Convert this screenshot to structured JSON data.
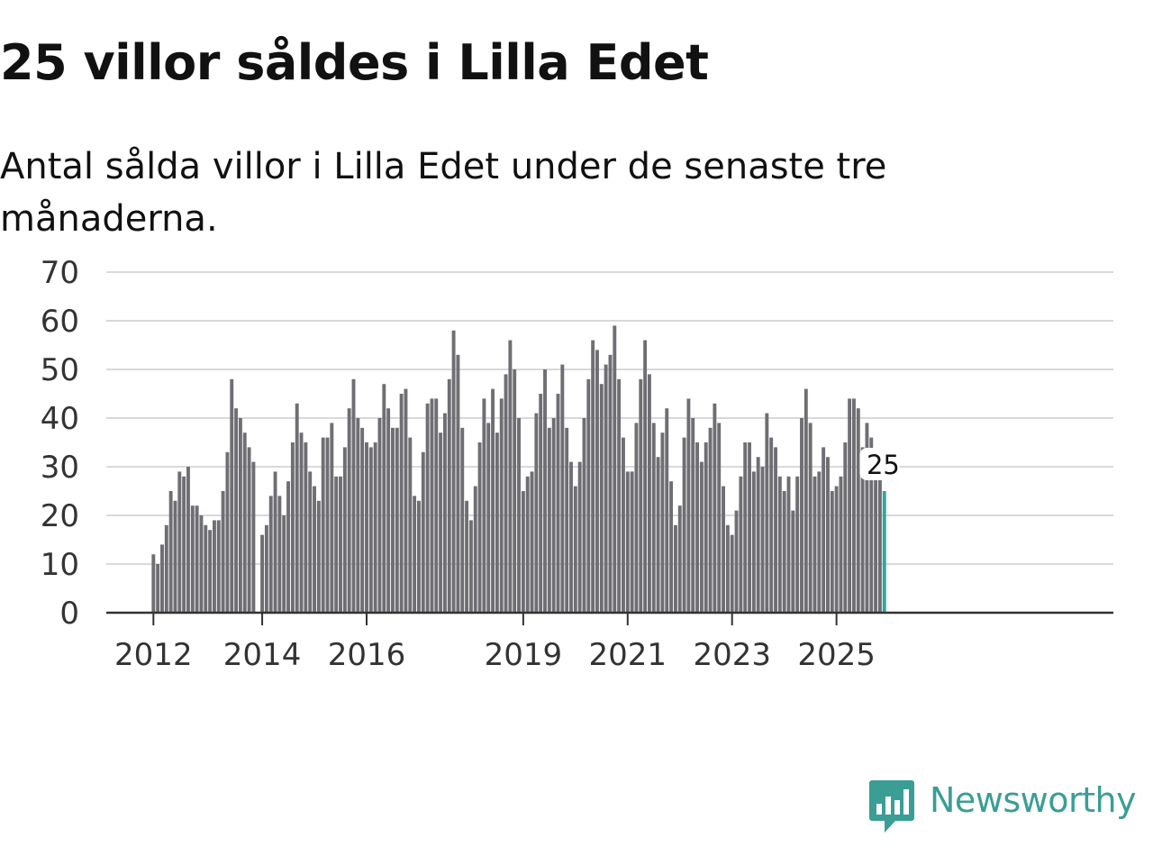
{
  "title": "25 villor såldes i Lilla Edet",
  "subtitle": "Antal sålda villor i Lilla Edet under de senaste tre månaderna.",
  "brand": {
    "name": "Newsworthy",
    "icon": "newsworthy-logo-icon",
    "color": "#3a9e95"
  },
  "chart_data": {
    "type": "bar",
    "title": "25 villor såldes i Lilla Edet",
    "xlabel": "",
    "ylabel": "",
    "ylim": [
      0,
      70
    ],
    "yticks": [
      "0",
      "10",
      "20",
      "30",
      "40",
      "50",
      "60",
      "70"
    ],
    "xticks": [
      "2012",
      "2014",
      "2016",
      "2019",
      "2021",
      "2023",
      "2025"
    ],
    "bar_color": "#6e6e73",
    "highlight_color": "#2ea89e",
    "highlight_label": "25",
    "series": [
      {
        "name": "2012",
        "values": [
          12,
          10,
          14,
          18,
          25,
          23,
          29,
          28,
          30,
          22,
          22,
          20,
          18,
          17,
          19,
          19,
          25,
          33,
          48,
          42,
          40,
          37,
          34,
          31
        ]
      },
      {
        "name": "2014",
        "values": [
          16,
          18,
          24,
          29,
          24,
          20,
          27,
          35,
          43,
          37,
          35,
          29,
          26,
          23,
          36,
          36,
          39,
          28,
          28,
          34,
          42,
          48,
          40,
          38
        ]
      },
      {
        "name": "2016",
        "values": [
          35,
          34,
          35,
          40,
          47,
          42,
          38,
          38,
          45,
          46,
          36,
          24,
          23,
          33,
          43,
          44,
          44,
          37,
          41,
          48,
          58,
          53,
          38,
          23,
          19,
          26,
          35,
          44,
          39,
          46,
          37,
          44,
          49,
          56,
          50,
          40
        ]
      },
      {
        "name": "2019",
        "values": [
          25,
          28,
          29,
          41,
          45,
          50,
          38,
          40,
          45,
          51,
          38,
          31,
          26,
          31,
          40,
          48,
          56,
          54,
          47,
          51,
          53,
          59,
          48,
          36
        ]
      },
      {
        "name": "2021",
        "values": [
          29,
          29,
          39,
          48,
          56,
          49,
          39,
          32,
          37,
          42,
          27,
          18,
          22,
          36,
          44,
          40,
          35,
          31,
          35,
          38,
          43,
          39,
          26,
          18
        ]
      },
      {
        "name": "2023",
        "values": [
          16,
          21,
          28,
          35,
          35,
          29,
          32,
          30,
          41,
          36,
          34,
          28,
          25,
          28,
          21,
          28,
          40,
          46,
          39,
          28,
          29,
          34,
          32,
          25
        ]
      },
      {
        "name": "2025",
        "values": [
          26,
          28,
          35,
          44,
          44,
          42,
          34,
          39,
          36,
          28,
          28,
          25
        ]
      }
    ]
  }
}
